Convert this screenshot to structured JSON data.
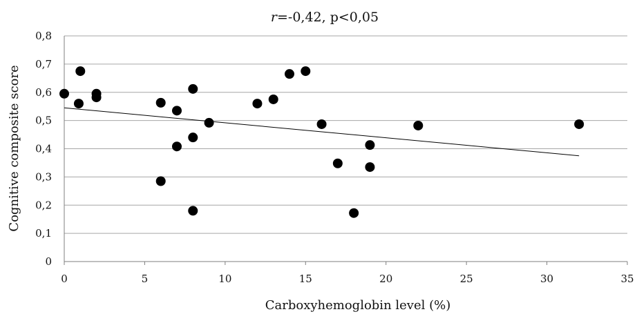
{
  "chart_data": {
    "type": "scatter",
    "title_r": "r",
    "title_rest": "=-0,42, p<0,05",
    "xlabel": "Carboxyhemoglobin level (%)",
    "ylabel": "Cognitive composite score",
    "xlim": [
      0,
      35
    ],
    "ylim": [
      0,
      0.8
    ],
    "x_ticks": [
      "0",
      "5",
      "10",
      "15",
      "20",
      "25",
      "30",
      "35"
    ],
    "y_ticks": [
      "0",
      "0,1",
      "0,2",
      "0,3",
      "0,4",
      "0,5",
      "0,6",
      "0,7",
      "0,8"
    ],
    "grid": "horizontal",
    "points": [
      {
        "x": 0,
        "y": 0.595
      },
      {
        "x": 0.9,
        "y": 0.56
      },
      {
        "x": 1,
        "y": 0.675
      },
      {
        "x": 2,
        "y": 0.595
      },
      {
        "x": 2,
        "y": 0.582
      },
      {
        "x": 6,
        "y": 0.563
      },
      {
        "x": 6,
        "y": 0.285
      },
      {
        "x": 7,
        "y": 0.535
      },
      {
        "x": 7,
        "y": 0.408
      },
      {
        "x": 8,
        "y": 0.612
      },
      {
        "x": 8,
        "y": 0.44
      },
      {
        "x": 8,
        "y": 0.18
      },
      {
        "x": 9,
        "y": 0.492
      },
      {
        "x": 12,
        "y": 0.56
      },
      {
        "x": 13,
        "y": 0.575
      },
      {
        "x": 14,
        "y": 0.665
      },
      {
        "x": 15,
        "y": 0.675
      },
      {
        "x": 16,
        "y": 0.487
      },
      {
        "x": 17,
        "y": 0.348
      },
      {
        "x": 18,
        "y": 0.172
      },
      {
        "x": 19,
        "y": 0.413
      },
      {
        "x": 19,
        "y": 0.335
      },
      {
        "x": 22,
        "y": 0.482
      },
      {
        "x": 32,
        "y": 0.487
      }
    ],
    "trendline": {
      "x": [
        0,
        32
      ],
      "y": [
        0.545,
        0.375
      ]
    },
    "colors": {
      "point": "#000000",
      "trend": "#000000",
      "grid": "#a6a6a6",
      "axis": "#7f7f7f"
    }
  }
}
